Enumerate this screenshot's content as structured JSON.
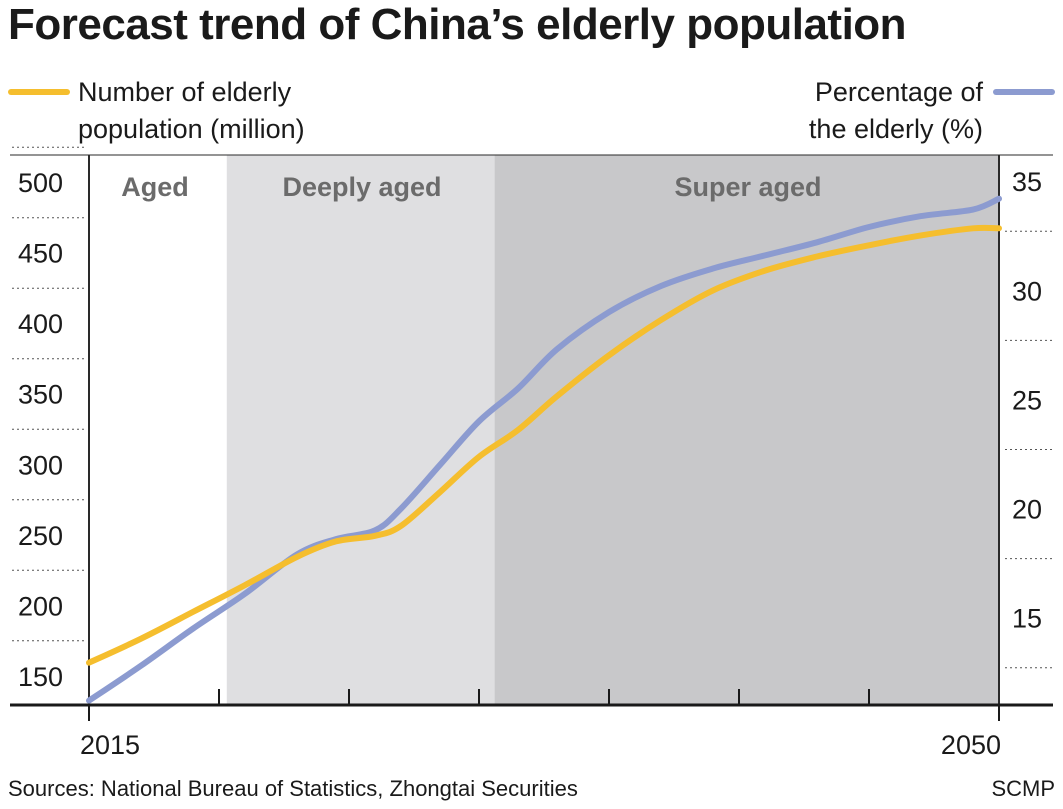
{
  "title": "Forecast trend of China’s elderly population",
  "legend": {
    "left_line1": "Number of elderly",
    "left_line2": "population (million)",
    "right_line1": "Percentage of",
    "right_line2": "the elderly (%)"
  },
  "colors": {
    "population": "#F5BE2E",
    "percentage": "#8C9BD0",
    "aged_bg": "#FFFFFF",
    "deeply_aged_bg": "#DFDFE1",
    "super_aged_bg": "#C8C8CA"
  },
  "footer": {
    "source": "Sources: National Bureau of Statistics, Zhongtai Securities",
    "credit": "SCMP"
  },
  "chart_data": {
    "type": "line",
    "title": "Forecast trend of China’s elderly population",
    "x_tick_labels": [
      "2015",
      "2050"
    ],
    "xlim": [
      2015,
      2050
    ],
    "y_left": {
      "label": "Number of elderly population (million)",
      "ticks": [
        150,
        200,
        250,
        300,
        350,
        400,
        450,
        500
      ],
      "lim": [
        130,
        520
      ]
    },
    "y_right": {
      "label": "Percentage of the elderly (%)",
      "ticks": [
        15,
        20,
        25,
        30,
        35
      ],
      "lim": [
        11,
        36.2
      ]
    },
    "phases": [
      {
        "label": "Aged",
        "from": 2015,
        "to": 2020.3
      },
      {
        "label": "Deeply aged",
        "from": 2020.3,
        "to": 2030.6
      },
      {
        "label": "Super aged",
        "from": 2030.6,
        "to": 2050
      }
    ],
    "series": [
      {
        "name": "Number of elderly population (million)",
        "axis": "left",
        "x": [
          2015,
          2017,
          2019,
          2021,
          2023,
          2024.5,
          2026,
          2027,
          2028.5,
          2030,
          2031.5,
          2033,
          2035,
          2037,
          2039,
          2041,
          2043,
          2045,
          2047,
          2049,
          2050
        ],
        "values": [
          160,
          177,
          196,
          215,
          235,
          246,
          250,
          257,
          281,
          306,
          325,
          349,
          378,
          403,
          424,
          438,
          448,
          456,
          463,
          468,
          468
        ]
      },
      {
        "name": "Percentage of the elderly (%)",
        "axis": "right",
        "x": [
          2015,
          2017,
          2019,
          2021,
          2023,
          2024.5,
          2026,
          2027,
          2028.5,
          2030,
          2031.5,
          2033,
          2035,
          2037,
          2039,
          2041,
          2043,
          2045,
          2047,
          2049,
          2050
        ],
        "values": [
          11.2,
          12.8,
          14.5,
          16.1,
          17.9,
          18.6,
          19.0,
          20.0,
          22.0,
          24.0,
          25.5,
          27.3,
          29.0,
          30.2,
          31.0,
          31.6,
          32.2,
          32.9,
          33.4,
          33.7,
          34.2
        ]
      }
    ]
  }
}
